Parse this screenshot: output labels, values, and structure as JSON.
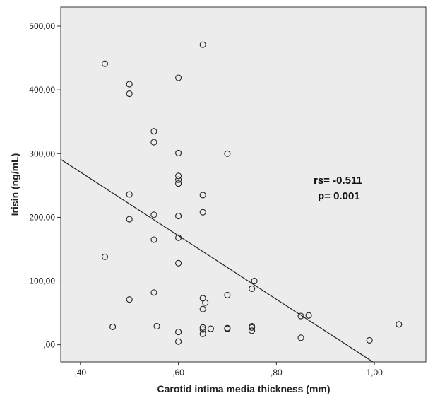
{
  "chart_data": {
    "type": "scatter",
    "title": "",
    "xlabel": "Carotid intima media thickness (mm)",
    "ylabel": "Irisin (ng/mL)",
    "xlim": [
      0.36,
      1.105
    ],
    "ylim": [
      -27,
      530
    ],
    "x_ticks": [
      0.4,
      0.6,
      0.8,
      1.0
    ],
    "x_tick_labels": [
      ",40",
      ",60",
      ",80",
      "1,00"
    ],
    "y_ticks": [
      0,
      100,
      200,
      300,
      400,
      500
    ],
    "y_tick_labels": [
      ",00",
      "100,00",
      "200,00",
      "300,00",
      "400,00",
      "500,00"
    ],
    "grid": false,
    "plot_background": "#ececec",
    "marker": "open-circle",
    "points": [
      [
        0.45,
        441
      ],
      [
        0.45,
        138
      ],
      [
        0.466,
        28
      ],
      [
        0.5,
        409
      ],
      [
        0.5,
        394
      ],
      [
        0.5,
        236
      ],
      [
        0.5,
        197
      ],
      [
        0.5,
        71
      ],
      [
        0.55,
        335
      ],
      [
        0.55,
        318
      ],
      [
        0.55,
        204
      ],
      [
        0.55,
        165
      ],
      [
        0.55,
        82
      ],
      [
        0.556,
        29
      ],
      [
        0.6,
        419
      ],
      [
        0.6,
        301
      ],
      [
        0.6,
        265
      ],
      [
        0.6,
        259
      ],
      [
        0.6,
        253
      ],
      [
        0.6,
        202
      ],
      [
        0.6,
        168
      ],
      [
        0.6,
        128
      ],
      [
        0.6,
        20
      ],
      [
        0.6,
        5
      ],
      [
        0.65,
        471
      ],
      [
        0.65,
        235
      ],
      [
        0.65,
        208
      ],
      [
        0.65,
        73
      ],
      [
        0.65,
        56
      ],
      [
        0.655,
        66
      ],
      [
        0.65,
        27
      ],
      [
        0.65,
        24
      ],
      [
        0.65,
        17
      ],
      [
        0.666,
        25
      ],
      [
        0.7,
        300
      ],
      [
        0.7,
        78
      ],
      [
        0.7,
        26
      ],
      [
        0.7,
        25
      ],
      [
        0.75,
        88
      ],
      [
        0.755,
        100
      ],
      [
        0.75,
        29
      ],
      [
        0.75,
        27
      ],
      [
        0.75,
        22
      ],
      [
        0.85,
        45
      ],
      [
        0.866,
        46
      ],
      [
        0.85,
        11
      ],
      [
        0.99,
        7
      ],
      [
        1.05,
        32
      ]
    ],
    "regression_line": {
      "x": [
        0.36,
        0.997
      ],
      "y": [
        291,
        -27
      ]
    },
    "annotations": [
      "rs= -0.511",
      "p=  0.001"
    ]
  }
}
